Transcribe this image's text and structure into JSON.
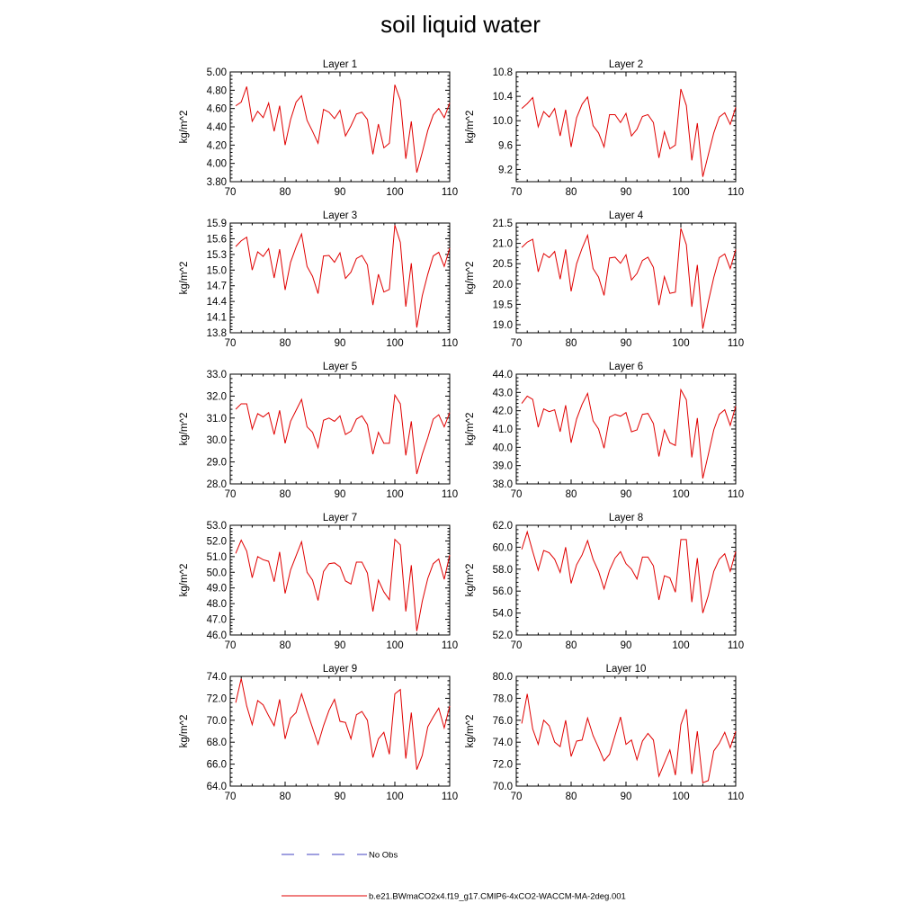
{
  "figure_title": "soil liquid water",
  "legend": [
    {
      "label": "No Obs",
      "color": "#4040c0",
      "dash": "dashed"
    },
    {
      "label": "b.e21.BWmaCO2x4.f19_g17.CMIP6-4xCO2-WACCM-MA-2deg.001",
      "color": "#e00000",
      "dash": "solid"
    }
  ],
  "colors": {
    "series": "#e00000",
    "obs": "#4040c0",
    "axis": "#000000"
  },
  "chart_data": [
    {
      "type": "line",
      "title": "Layer 1",
      "xlabel": "",
      "ylabel": "kg/m^2",
      "xlim": [
        70,
        110
      ],
      "ylim": [
        3.8,
        5.0
      ],
      "xticks": [
        70,
        80,
        90,
        100,
        110
      ],
      "yticks": [
        3.8,
        4.0,
        4.2,
        4.4,
        4.6,
        4.8,
        5.0
      ],
      "ytick_labels": [
        "3.80",
        "4.00",
        "4.20",
        "4.40",
        "4.60",
        "4.80",
        "5.00"
      ],
      "x": [
        71,
        72,
        73,
        74,
        75,
        76,
        77,
        78,
        79,
        80,
        81,
        82,
        83,
        84,
        85,
        86,
        87,
        88,
        89,
        90,
        91,
        92,
        93,
        94,
        95,
        96,
        97,
        98,
        99,
        100,
        101,
        102,
        103,
        104,
        105,
        106,
        107,
        108,
        109,
        110
      ],
      "series": [
        {
          "name": "b.e21.BWmaCO2x4.f19_g17.CMIP6-4xCO2-WACCM-MA-2deg.001",
          "values": [
            4.63,
            4.67,
            4.84,
            4.46,
            4.57,
            4.5,
            4.66,
            4.35,
            4.63,
            4.2,
            4.48,
            4.67,
            4.74,
            4.47,
            4.35,
            4.22,
            4.59,
            4.56,
            4.49,
            4.58,
            4.3,
            4.41,
            4.54,
            4.56,
            4.48,
            4.1,
            4.43,
            4.17,
            4.22,
            4.86,
            4.69,
            4.05,
            4.46,
            3.9,
            4.12,
            4.36,
            4.53,
            4.6,
            4.5,
            4.66
          ]
        }
      ]
    },
    {
      "type": "line",
      "title": "Layer 2",
      "xlabel": "",
      "ylabel": "kg/m^2",
      "xlim": [
        70,
        110
      ],
      "ylim": [
        9.0,
        10.8
      ],
      "xticks": [
        70,
        80,
        90,
        100,
        110
      ],
      "yticks": [
        9.2,
        9.6,
        10.0,
        10.4,
        10.8
      ],
      "ytick_labels": [
        "9.2",
        "9.6",
        "10.0",
        "10.4",
        "10.8"
      ],
      "x": [
        71,
        72,
        73,
        74,
        75,
        76,
        77,
        78,
        79,
        80,
        81,
        82,
        83,
        84,
        85,
        86,
        87,
        88,
        89,
        90,
        91,
        92,
        93,
        94,
        95,
        96,
        97,
        98,
        99,
        100,
        101,
        102,
        103,
        104,
        105,
        106,
        107,
        108,
        109,
        110
      ],
      "series": [
        {
          "name": "b.e21.BWmaCO2x4.f19_g17.CMIP6-4xCO2-WACCM-MA-2deg.001",
          "values": [
            10.2,
            10.28,
            10.38,
            9.9,
            10.15,
            10.06,
            10.2,
            9.75,
            10.18,
            9.57,
            10.05,
            10.27,
            10.39,
            9.92,
            9.8,
            9.57,
            10.1,
            10.1,
            9.97,
            10.12,
            9.75,
            9.86,
            10.07,
            10.1,
            9.97,
            9.39,
            9.82,
            9.54,
            9.6,
            10.52,
            10.25,
            9.35,
            9.96,
            9.08,
            9.44,
            9.8,
            10.06,
            10.13,
            9.94,
            10.22
          ]
        }
      ]
    },
    {
      "type": "line",
      "title": "Layer 3",
      "xlabel": "",
      "ylabel": "kg/m^2",
      "xlim": [
        70,
        110
      ],
      "ylim": [
        13.8,
        15.9
      ],
      "xticks": [
        70,
        80,
        90,
        100,
        110
      ],
      "yticks": [
        13.8,
        14.1,
        14.4,
        14.7,
        15.0,
        15.3,
        15.6,
        15.9
      ],
      "ytick_labels": [
        "13.8",
        "14.1",
        "14.4",
        "14.7",
        "15.0",
        "15.3",
        "15.6",
        "15.9"
      ],
      "x": [
        71,
        72,
        73,
        74,
        75,
        76,
        77,
        78,
        79,
        80,
        81,
        82,
        83,
        84,
        85,
        86,
        87,
        88,
        89,
        90,
        91,
        92,
        93,
        94,
        95,
        96,
        97,
        98,
        99,
        100,
        101,
        102,
        103,
        104,
        105,
        106,
        107,
        108,
        109,
        110
      ],
      "series": [
        {
          "name": "b.e21.BWmaCO2x4.f19_g17.CMIP6-4xCO2-WACCM-MA-2deg.001",
          "values": [
            15.45,
            15.56,
            15.63,
            15.0,
            15.35,
            15.26,
            15.41,
            14.85,
            15.4,
            14.62,
            15.15,
            15.44,
            15.69,
            15.07,
            14.88,
            14.55,
            15.27,
            15.28,
            15.15,
            15.33,
            14.84,
            14.96,
            15.22,
            15.28,
            15.1,
            14.33,
            14.92,
            14.58,
            14.63,
            15.86,
            15.53,
            14.3,
            15.13,
            13.9,
            14.51,
            14.92,
            15.27,
            15.34,
            15.07,
            15.42
          ]
        }
      ]
    },
    {
      "type": "line",
      "title": "Layer 4",
      "xlabel": "",
      "ylabel": "kg/m^2",
      "xlim": [
        70,
        110
      ],
      "ylim": [
        18.8,
        21.5
      ],
      "xticks": [
        70,
        80,
        90,
        100,
        110
      ],
      "yticks": [
        19.0,
        19.5,
        20.0,
        20.5,
        21.0,
        21.5
      ],
      "ytick_labels": [
        "19.0",
        "19.5",
        "20.0",
        "20.5",
        "21.0",
        "21.5"
      ],
      "x": [
        71,
        72,
        73,
        74,
        75,
        76,
        77,
        78,
        79,
        80,
        81,
        82,
        83,
        84,
        85,
        86,
        87,
        88,
        89,
        90,
        91,
        92,
        93,
        94,
        95,
        96,
        97,
        98,
        99,
        100,
        101,
        102,
        103,
        104,
        105,
        106,
        107,
        108,
        109,
        110
      ],
      "series": [
        {
          "name": "b.e21.BWmaCO2x4.f19_g17.CMIP6-4xCO2-WACCM-MA-2deg.001",
          "values": [
            20.9,
            21.03,
            21.1,
            20.3,
            20.75,
            20.65,
            20.8,
            20.12,
            20.85,
            19.82,
            20.5,
            20.88,
            21.2,
            20.38,
            20.17,
            19.72,
            20.64,
            20.66,
            20.51,
            20.72,
            20.1,
            20.26,
            20.58,
            20.66,
            20.41,
            19.48,
            20.18,
            19.77,
            19.8,
            21.37,
            20.97,
            19.44,
            20.47,
            18.9,
            19.56,
            20.16,
            20.65,
            20.74,
            20.38,
            20.85
          ]
        }
      ]
    },
    {
      "type": "line",
      "title": "Layer 5",
      "xlabel": "",
      "ylabel": "kg/m^2",
      "xlim": [
        70,
        110
      ],
      "ylim": [
        28.0,
        33.0
      ],
      "xticks": [
        70,
        80,
        90,
        100,
        110
      ],
      "yticks": [
        28.0,
        29.0,
        30.0,
        31.0,
        32.0,
        33.0
      ],
      "ytick_labels": [
        "28.0",
        "29.0",
        "30.0",
        "31.0",
        "32.0",
        "33.0"
      ],
      "x": [
        71,
        72,
        73,
        74,
        75,
        76,
        77,
        78,
        79,
        80,
        81,
        82,
        83,
        84,
        85,
        86,
        87,
        88,
        89,
        90,
        91,
        92,
        93,
        94,
        95,
        96,
        97,
        98,
        99,
        100,
        101,
        102,
        103,
        104,
        105,
        106,
        107,
        108,
        109,
        110
      ],
      "series": [
        {
          "name": "b.e21.BWmaCO2x4.f19_g17.CMIP6-4xCO2-WACCM-MA-2deg.001",
          "values": [
            31.4,
            31.65,
            31.65,
            30.5,
            31.2,
            31.05,
            31.25,
            30.25,
            31.35,
            29.85,
            30.85,
            31.35,
            31.85,
            30.6,
            30.35,
            29.65,
            30.9,
            31.0,
            30.85,
            31.1,
            30.25,
            30.4,
            30.95,
            31.1,
            30.7,
            29.35,
            30.35,
            29.85,
            29.85,
            32.05,
            31.65,
            29.3,
            30.85,
            28.45,
            29.35,
            30.1,
            30.95,
            31.15,
            30.6,
            31.25
          ]
        }
      ]
    },
    {
      "type": "line",
      "title": "Layer 6",
      "xlabel": "",
      "ylabel": "kg/m^2",
      "xlim": [
        70,
        110
      ],
      "ylim": [
        38.0,
        44.0
      ],
      "xticks": [
        70,
        80,
        90,
        100,
        110
      ],
      "yticks": [
        38.0,
        39.0,
        40.0,
        41.0,
        42.0,
        43.0,
        44.0
      ],
      "ytick_labels": [
        "38.0",
        "39.0",
        "40.0",
        "41.0",
        "42.0",
        "43.0",
        "44.0"
      ],
      "x": [
        71,
        72,
        73,
        74,
        75,
        76,
        77,
        78,
        79,
        80,
        81,
        82,
        83,
        84,
        85,
        86,
        87,
        88,
        89,
        90,
        91,
        92,
        93,
        94,
        95,
        96,
        97,
        98,
        99,
        100,
        101,
        102,
        103,
        104,
        105,
        106,
        107,
        108,
        109,
        110
      ],
      "series": [
        {
          "name": "b.e21.BWmaCO2x4.f19_g17.CMIP6-4xCO2-WACCM-MA-2deg.001",
          "values": [
            42.4,
            42.8,
            42.62,
            41.1,
            42.1,
            41.95,
            42.05,
            40.85,
            42.3,
            40.25,
            41.55,
            42.35,
            42.95,
            41.45,
            41.0,
            39.95,
            41.65,
            41.8,
            41.7,
            41.9,
            40.85,
            40.95,
            41.8,
            41.85,
            41.3,
            39.5,
            40.95,
            40.25,
            40.1,
            43.15,
            42.6,
            39.45,
            41.6,
            38.3,
            39.6,
            40.95,
            41.8,
            42.05,
            41.2,
            42.25
          ]
        }
      ]
    },
    {
      "type": "line",
      "title": "Layer 7",
      "xlabel": "",
      "ylabel": "kg/m^2",
      "xlim": [
        70,
        110
      ],
      "ylim": [
        46.0,
        53.0
      ],
      "xticks": [
        70,
        80,
        90,
        100,
        110
      ],
      "yticks": [
        46.0,
        47.0,
        48.0,
        49.0,
        50.0,
        51.0,
        52.0,
        53.0
      ],
      "ytick_labels": [
        "46.0",
        "47.0",
        "48.0",
        "49.0",
        "50.0",
        "51.0",
        "52.0",
        "53.0"
      ],
      "x": [
        71,
        72,
        73,
        74,
        75,
        76,
        77,
        78,
        79,
        80,
        81,
        82,
        83,
        84,
        85,
        86,
        87,
        88,
        89,
        90,
        91,
        92,
        93,
        94,
        95,
        96,
        97,
        98,
        99,
        100,
        101,
        102,
        103,
        104,
        105,
        106,
        107,
        108,
        109,
        110
      ],
      "series": [
        {
          "name": "b.e21.BWmaCO2x4.f19_g17.CMIP6-4xCO2-WACCM-MA-2deg.001",
          "values": [
            51.2,
            52.05,
            51.35,
            49.65,
            51.0,
            50.8,
            50.7,
            49.4,
            51.3,
            48.65,
            50.15,
            51.05,
            51.95,
            50.0,
            49.5,
            48.2,
            50.05,
            50.55,
            50.6,
            50.35,
            49.45,
            49.25,
            50.65,
            50.65,
            49.95,
            47.5,
            49.5,
            48.75,
            48.25,
            52.1,
            51.75,
            47.5,
            50.45,
            46.25,
            48.15,
            49.6,
            50.55,
            50.85,
            49.55,
            51.1
          ]
        }
      ]
    },
    {
      "type": "line",
      "title": "Layer 8",
      "xlabel": "",
      "ylabel": "kg/m^2",
      "xlim": [
        70,
        110
      ],
      "ylim": [
        52.0,
        62.0
      ],
      "xticks": [
        70,
        80,
        90,
        100,
        110
      ],
      "yticks": [
        52.0,
        54.0,
        56.0,
        58.0,
        60.0,
        62.0
      ],
      "ytick_labels": [
        "52.0",
        "54.0",
        "56.0",
        "58.0",
        "60.0",
        "62.0"
      ],
      "x": [
        71,
        72,
        73,
        74,
        75,
        76,
        77,
        78,
        79,
        80,
        81,
        82,
        83,
        84,
        85,
        86,
        87,
        88,
        89,
        90,
        91,
        92,
        93,
        94,
        95,
        96,
        97,
        98,
        99,
        100,
        101,
        102,
        103,
        104,
        105,
        106,
        107,
        108,
        109,
        110
      ],
      "series": [
        {
          "name": "b.e21.BWmaCO2x4.f19_g17.CMIP6-4xCO2-WACCM-MA-2deg.001",
          "values": [
            59.8,
            61.4,
            59.6,
            57.9,
            59.7,
            59.5,
            58.9,
            57.7,
            60.0,
            56.7,
            58.4,
            59.3,
            60.6,
            58.9,
            57.8,
            56.2,
            57.9,
            59.0,
            59.6,
            58.5,
            58.0,
            57.1,
            59.1,
            59.1,
            58.3,
            55.2,
            57.4,
            57.2,
            55.9,
            60.7,
            60.7,
            55.0,
            59.0,
            54.0,
            55.6,
            57.8,
            58.9,
            59.4,
            57.8,
            59.6
          ]
        }
      ]
    },
    {
      "type": "line",
      "title": "Layer 9",
      "xlabel": "",
      "ylabel": "kg/m^2",
      "xlim": [
        70,
        110
      ],
      "ylim": [
        64.0,
        74.0
      ],
      "xticks": [
        70,
        80,
        90,
        100,
        110
      ],
      "yticks": [
        64.0,
        66.0,
        68.0,
        70.0,
        72.0,
        74.0
      ],
      "ytick_labels": [
        "64.0",
        "66.0",
        "68.0",
        "70.0",
        "72.0",
        "74.0"
      ],
      "x": [
        71,
        72,
        73,
        74,
        75,
        76,
        77,
        78,
        79,
        80,
        81,
        82,
        83,
        84,
        85,
        86,
        87,
        88,
        89,
        90,
        91,
        92,
        93,
        94,
        95,
        96,
        97,
        98,
        99,
        100,
        101,
        102,
        103,
        104,
        105,
        106,
        107,
        108,
        109,
        110
      ],
      "series": [
        {
          "name": "b.e21.BWmaCO2x4.f19_g17.CMIP6-4xCO2-WACCM-MA-2deg.001",
          "values": [
            71.6,
            73.8,
            71.3,
            69.6,
            71.8,
            71.4,
            70.4,
            69.5,
            71.9,
            68.3,
            70.2,
            70.7,
            72.4,
            70.8,
            69.3,
            67.8,
            69.5,
            70.9,
            71.9,
            69.9,
            69.8,
            68.3,
            70.5,
            70.8,
            70.0,
            66.6,
            68.3,
            68.9,
            66.9,
            72.4,
            72.8,
            66.5,
            70.7,
            65.5,
            66.8,
            69.4,
            70.3,
            71.1,
            69.3,
            71.3
          ]
        }
      ]
    },
    {
      "type": "line",
      "title": "Layer 10",
      "xlabel": "",
      "ylabel": "kg/m^2",
      "xlim": [
        70,
        110
      ],
      "ylim": [
        70.0,
        80.0
      ],
      "xticks": [
        70,
        80,
        90,
        100,
        110
      ],
      "yticks": [
        70.0,
        72.0,
        74.0,
        76.0,
        78.0,
        80.0
      ],
      "ytick_labels": [
        "70.0",
        "72.0",
        "74.0",
        "76.0",
        "78.0",
        "80.0"
      ],
      "x": [
        71,
        72,
        73,
        74,
        75,
        76,
        77,
        78,
        79,
        80,
        81,
        82,
        83,
        84,
        85,
        86,
        87,
        88,
        89,
        90,
        91,
        92,
        93,
        94,
        95,
        96,
        97,
        98,
        99,
        100,
        101,
        102,
        103,
        104,
        105,
        106,
        107,
        108,
        109,
        110
      ],
      "series": [
        {
          "name": "b.e21.BWmaCO2x4.f19_g17.CMIP6-4xCO2-WACCM-MA-2deg.001",
          "values": [
            75.7,
            78.4,
            75.2,
            73.8,
            76.0,
            75.5,
            74.0,
            73.6,
            76.0,
            72.7,
            74.1,
            74.2,
            76.2,
            74.6,
            73.5,
            72.3,
            72.9,
            74.6,
            76.3,
            73.8,
            74.2,
            72.4,
            74.1,
            74.8,
            74.2,
            70.9,
            72.1,
            73.3,
            71.0,
            75.6,
            77.0,
            71.1,
            75.0,
            70.3,
            70.5,
            73.2,
            73.9,
            74.9,
            73.5,
            75.0
          ]
        }
      ]
    }
  ]
}
